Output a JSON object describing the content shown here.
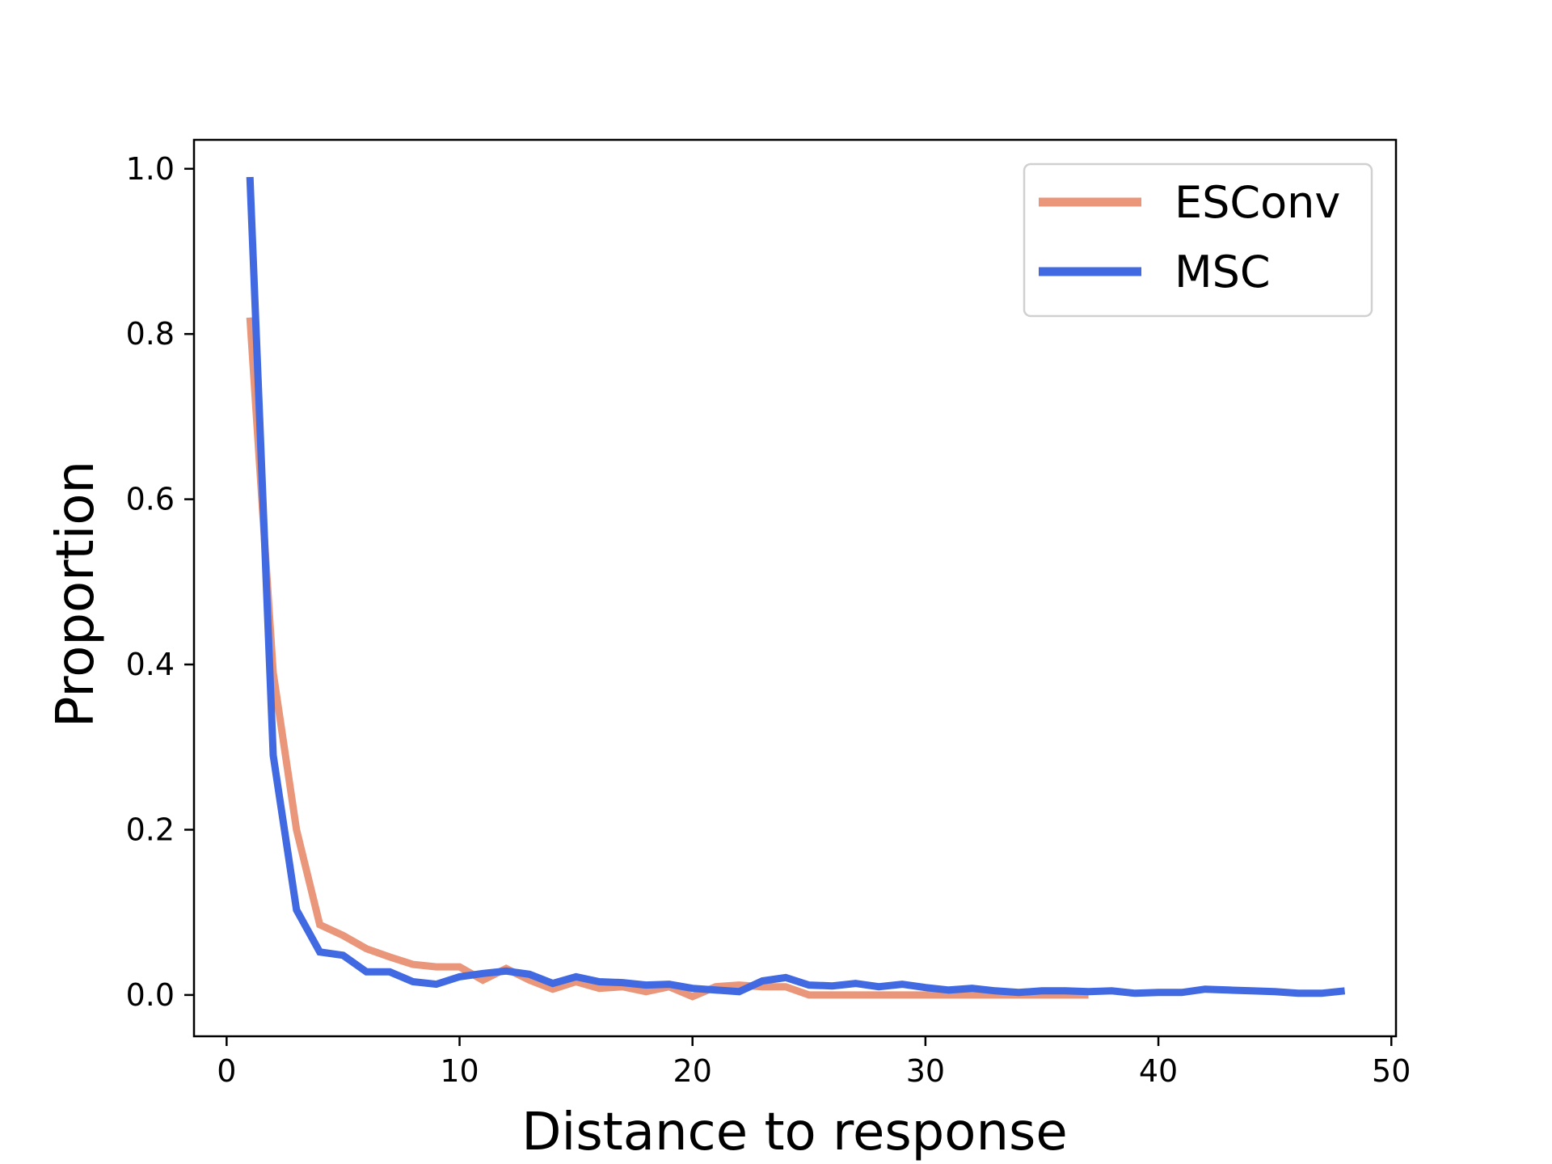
{
  "chart_data": {
    "type": "line",
    "title": "",
    "xlabel": "Distance to response",
    "ylabel": "Proportion",
    "xlim": [
      -1.4,
      50.2
    ],
    "ylim": [
      -0.05,
      1.035
    ],
    "xticks": [
      0,
      10,
      20,
      30,
      40,
      50
    ],
    "yticks": [
      0.0,
      0.2,
      0.4,
      0.6,
      0.8,
      1.0
    ],
    "xtick_labels": [
      "0",
      "10",
      "20",
      "30",
      "40",
      "50"
    ],
    "ytick_labels": [
      "0.0",
      "0.2",
      "0.4",
      "0.6",
      "0.8",
      "1.0"
    ],
    "grid": false,
    "legend_position": "top-right",
    "series": [
      {
        "name": "ESConv",
        "color": "#E9967A",
        "x": [
          1,
          2,
          3,
          4,
          5,
          6,
          7,
          8,
          9,
          10,
          11,
          12,
          13,
          14,
          15,
          16,
          17,
          18,
          19,
          20,
          21,
          22,
          23,
          24,
          25,
          26,
          27,
          28,
          29,
          30,
          31,
          32,
          33,
          34,
          35,
          36,
          37
        ],
        "y": [
          0.82,
          0.39,
          0.2,
          0.085,
          0.072,
          0.056,
          0.046,
          0.037,
          0.034,
          0.034,
          0.018,
          0.032,
          0.018,
          0.007,
          0.016,
          0.008,
          0.01,
          0.004,
          0.01,
          -0.002,
          0.01,
          0.012,
          0.01,
          0.01,
          0.0,
          0.0,
          0.0,
          0.0,
          0.0,
          0.0,
          0.0,
          0.0,
          0.0,
          0.0,
          0.0,
          0.0,
          0.0
        ]
      },
      {
        "name": "MSC",
        "color": "#4169E1",
        "x": [
          1,
          2,
          3,
          4,
          5,
          6,
          7,
          8,
          9,
          10,
          11,
          12,
          13,
          14,
          15,
          16,
          17,
          18,
          19,
          20,
          21,
          22,
          23,
          24,
          25,
          26,
          27,
          28,
          29,
          30,
          31,
          32,
          33,
          34,
          35,
          36,
          37,
          38,
          39,
          40,
          41,
          42,
          43,
          44,
          45,
          46,
          47,
          48
        ],
        "y": [
          0.99,
          0.29,
          0.103,
          0.052,
          0.048,
          0.028,
          0.028,
          0.016,
          0.013,
          0.022,
          0.026,
          0.029,
          0.025,
          0.014,
          0.022,
          0.016,
          0.015,
          0.012,
          0.013,
          0.008,
          0.006,
          0.004,
          0.017,
          0.021,
          0.012,
          0.011,
          0.014,
          0.01,
          0.013,
          0.009,
          0.006,
          0.008,
          0.005,
          0.003,
          0.005,
          0.005,
          0.004,
          0.005,
          0.002,
          0.003,
          0.003,
          0.007,
          0.006,
          0.005,
          0.004,
          0.002,
          0.002,
          0.005
        ]
      }
    ]
  }
}
